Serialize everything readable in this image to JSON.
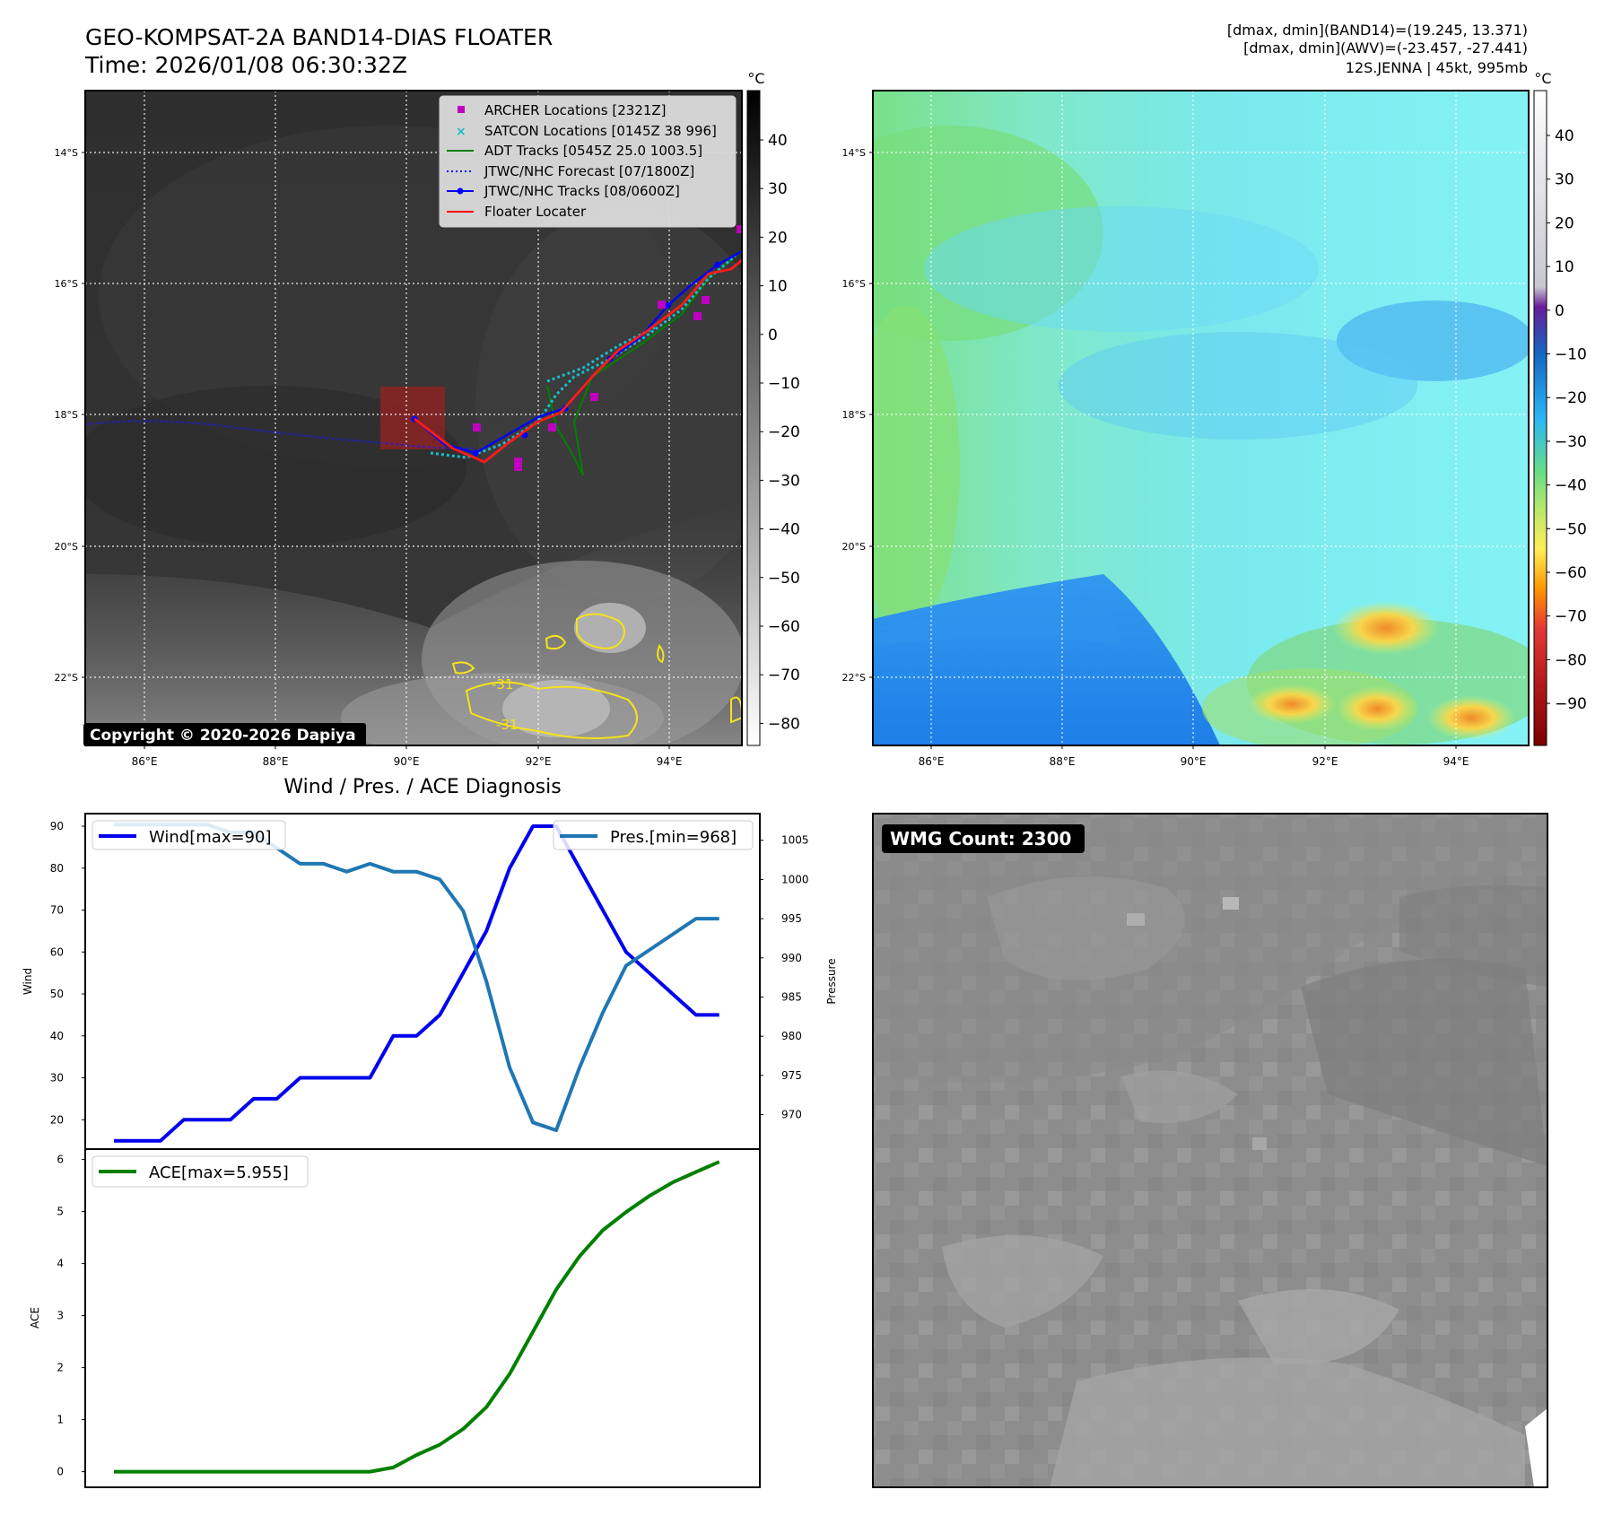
{
  "header": {
    "title_line1": "GEO-KOMPSAT-2A BAND14-DIAS FLOATER",
    "title_line2": "Time: 2026/01/08 06:30:32Z",
    "stats_line1": "[dmax, dmin](BAND14)=(19.245, 13.371)",
    "stats_line2": "[dmax, dmin](AWV)=(-23.457, -27.441)",
    "stats_line3": "12S.JENNA | 45kt, 995mb"
  },
  "map": {
    "lon_ticks": [
      "86°E",
      "88°E",
      "90°E",
      "92°E",
      "94°E"
    ],
    "lat_ticks": [
      "14°S",
      "16°S",
      "18°S",
      "20°S",
      "22°S"
    ],
    "colorbar_unit": "°C",
    "gray_colorbar_ticks": [
      "40",
      "30",
      "20",
      "10",
      "0",
      "−10",
      "−20",
      "−30",
      "−40",
      "−50",
      "−60",
      "−70",
      "−80"
    ],
    "color_colorbar_ticks": [
      "40",
      "30",
      "20",
      "10",
      "0",
      "−10",
      "−20",
      "−30",
      "−40",
      "−50",
      "−60",
      "−70",
      "−80",
      "−90"
    ],
    "copyright": "Copyright © 2020-2026 Dapiya",
    "contour_label": "-31",
    "legend": [
      {
        "label": "ARCHER Locations [2321Z]",
        "color": "#c000c0"
      },
      {
        "label": "SATCON Locations [0145Z 38 996]",
        "color": "#17becf"
      },
      {
        "label": "ADT Tracks [0545Z 25.0 1003.5]",
        "color": "#008000"
      },
      {
        "label": "JTWC/NHC Forecast [07/1800Z]",
        "color": "#0000ff"
      },
      {
        "label": "JTWC/NHC Tracks [08/0600Z]",
        "color": "#0000ff"
      },
      {
        "label": "Floater Locater",
        "color": "#ff0000"
      }
    ]
  },
  "chart_data": [
    {
      "type": "line",
      "title": "Wind / Pres. / ACE Diagnosis",
      "ylabel": "Wind",
      "y2label": "Pressure",
      "ylim": [
        13,
        93
      ],
      "y2lim": [
        965.6,
        1008.4
      ],
      "yticks": [
        20,
        30,
        40,
        50,
        60,
        70,
        80,
        90
      ],
      "y2ticks": [
        970,
        975,
        980,
        985,
        990,
        995,
        1000,
        1005
      ],
      "series": [
        {
          "name": "Wind[max=90]",
          "axis": "left",
          "color": "#0000ee",
          "values": [
            15,
            15,
            15,
            20,
            20,
            20,
            25,
            25,
            30,
            30,
            30,
            30,
            40,
            40,
            45,
            55,
            65,
            80,
            90,
            90,
            80,
            70,
            60,
            55,
            50,
            45,
            45
          ]
        },
        {
          "name": "Pres.[min=968]",
          "axis": "right",
          "color": "#1f77b4",
          "values": [
            1007,
            1007,
            1007,
            1007,
            1007,
            1006,
            1006,
            1004,
            1002,
            1002,
            1001,
            1002,
            1001,
            1001,
            1000,
            996,
            987,
            976,
            969,
            968,
            976,
            983,
            989,
            991,
            993,
            995,
            995
          ]
        }
      ]
    },
    {
      "type": "line",
      "ylabel": "ACE",
      "ylim": [
        -0.3,
        6.2
      ],
      "yticks": [
        0,
        1,
        2,
        3,
        4,
        5,
        6
      ],
      "series": [
        {
          "name": "ACE[max=5.955]",
          "color": "#008000",
          "values": [
            0,
            0,
            0,
            0,
            0,
            0,
            0,
            0,
            0,
            0,
            0,
            0,
            0.081,
            0.32,
            0.52,
            0.82,
            1.24,
            1.88,
            2.69,
            3.5,
            4.14,
            4.64,
            4.99,
            5.3,
            5.56,
            5.76,
            5.955
          ]
        }
      ]
    }
  ],
  "wmg": {
    "label": "WMG Count: 2300"
  }
}
